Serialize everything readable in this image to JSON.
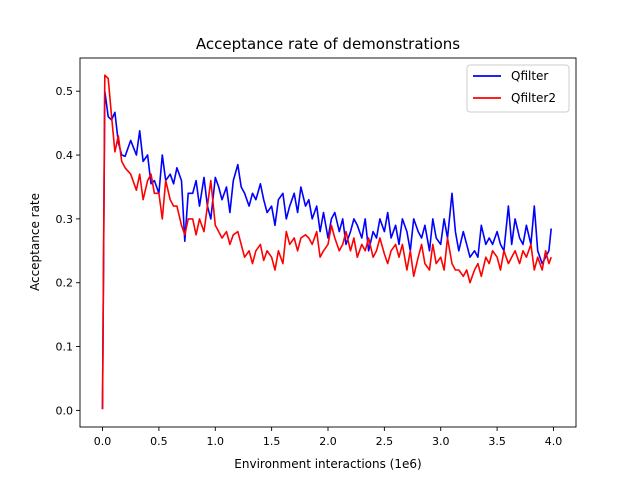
{
  "chart_data": {
    "type": "line",
    "title": "Acceptance rate of demonstrations",
    "xlabel": "Environment interactions (1e6)",
    "ylabel": "Acceptance rate",
    "xlim": [
      -0.2,
      4.2
    ],
    "ylim": [
      -0.026,
      0.552
    ],
    "xticks": [
      "0.0",
      "0.5",
      "1.0",
      "1.5",
      "2.0",
      "2.5",
      "3.0",
      "3.5",
      "4.0"
    ],
    "yticks": [
      "0.0",
      "0.1",
      "0.2",
      "0.3",
      "0.4",
      "0.5"
    ],
    "grid": false,
    "legend_position": "top-right",
    "series": [
      {
        "name": "Qfilter",
        "color": "#0000ff",
        "x": [
          0.0,
          0.02,
          0.05,
          0.08,
          0.11,
          0.14,
          0.17,
          0.2,
          0.25,
          0.3,
          0.33,
          0.36,
          0.4,
          0.43,
          0.46,
          0.5,
          0.53,
          0.56,
          0.6,
          0.63,
          0.66,
          0.7,
          0.73,
          0.76,
          0.8,
          0.83,
          0.86,
          0.9,
          0.93,
          0.96,
          1.0,
          1.03,
          1.06,
          1.1,
          1.13,
          1.16,
          1.2,
          1.23,
          1.26,
          1.3,
          1.33,
          1.36,
          1.4,
          1.43,
          1.46,
          1.5,
          1.53,
          1.56,
          1.6,
          1.63,
          1.66,
          1.7,
          1.73,
          1.76,
          1.8,
          1.83,
          1.86,
          1.9,
          1.93,
          1.96,
          2.0,
          2.03,
          2.06,
          2.1,
          2.13,
          2.16,
          2.2,
          2.23,
          2.26,
          2.3,
          2.33,
          2.36,
          2.4,
          2.43,
          2.46,
          2.5,
          2.53,
          2.56,
          2.6,
          2.63,
          2.66,
          2.7,
          2.73,
          2.76,
          2.8,
          2.83,
          2.86,
          2.9,
          2.93,
          2.96,
          3.0,
          3.03,
          3.06,
          3.1,
          3.13,
          3.16,
          3.2,
          3.23,
          3.26,
          3.3,
          3.33,
          3.36,
          3.4,
          3.43,
          3.46,
          3.5,
          3.53,
          3.56,
          3.6,
          3.63,
          3.66,
          3.7,
          3.73,
          3.76,
          3.8,
          3.83,
          3.86,
          3.9,
          3.93,
          3.96,
          3.98
        ],
        "y": [
          0.002,
          0.5,
          0.46,
          0.455,
          0.467,
          0.42,
          0.4,
          0.398,
          0.423,
          0.4,
          0.438,
          0.39,
          0.4,
          0.355,
          0.36,
          0.34,
          0.4,
          0.36,
          0.37,
          0.355,
          0.38,
          0.36,
          0.265,
          0.34,
          0.34,
          0.36,
          0.32,
          0.365,
          0.32,
          0.3,
          0.365,
          0.35,
          0.33,
          0.35,
          0.31,
          0.36,
          0.385,
          0.35,
          0.34,
          0.32,
          0.34,
          0.33,
          0.355,
          0.33,
          0.31,
          0.32,
          0.29,
          0.33,
          0.34,
          0.3,
          0.32,
          0.34,
          0.31,
          0.35,
          0.32,
          0.33,
          0.3,
          0.32,
          0.28,
          0.31,
          0.27,
          0.3,
          0.31,
          0.28,
          0.3,
          0.26,
          0.28,
          0.3,
          0.29,
          0.27,
          0.3,
          0.25,
          0.28,
          0.27,
          0.3,
          0.28,
          0.31,
          0.27,
          0.29,
          0.26,
          0.3,
          0.28,
          0.25,
          0.3,
          0.28,
          0.27,
          0.29,
          0.25,
          0.3,
          0.27,
          0.26,
          0.3,
          0.27,
          0.34,
          0.28,
          0.25,
          0.28,
          0.26,
          0.24,
          0.25,
          0.24,
          0.29,
          0.26,
          0.27,
          0.26,
          0.28,
          0.26,
          0.25,
          0.32,
          0.26,
          0.3,
          0.27,
          0.26,
          0.29,
          0.26,
          0.32,
          0.25,
          0.23,
          0.24,
          0.25,
          0.285
        ]
      },
      {
        "name": "Qfilter2",
        "color": "#ff0000",
        "x": [
          0.0,
          0.02,
          0.05,
          0.08,
          0.11,
          0.14,
          0.17,
          0.2,
          0.25,
          0.3,
          0.33,
          0.36,
          0.4,
          0.43,
          0.46,
          0.5,
          0.53,
          0.56,
          0.6,
          0.63,
          0.66,
          0.7,
          0.73,
          0.76,
          0.8,
          0.83,
          0.86,
          0.9,
          0.93,
          0.96,
          1.0,
          1.03,
          1.06,
          1.1,
          1.13,
          1.16,
          1.2,
          1.23,
          1.26,
          1.3,
          1.33,
          1.36,
          1.4,
          1.43,
          1.46,
          1.5,
          1.53,
          1.56,
          1.6,
          1.63,
          1.66,
          1.7,
          1.73,
          1.76,
          1.8,
          1.83,
          1.86,
          1.9,
          1.93,
          1.96,
          2.0,
          2.03,
          2.06,
          2.1,
          2.13,
          2.16,
          2.2,
          2.23,
          2.26,
          2.3,
          2.33,
          2.36,
          2.4,
          2.43,
          2.46,
          2.5,
          2.53,
          2.56,
          2.6,
          2.63,
          2.66,
          2.7,
          2.73,
          2.76,
          2.8,
          2.83,
          2.86,
          2.9,
          2.93,
          2.96,
          3.0,
          3.03,
          3.06,
          3.1,
          3.13,
          3.16,
          3.2,
          3.23,
          3.26,
          3.3,
          3.33,
          3.36,
          3.4,
          3.43,
          3.46,
          3.5,
          3.53,
          3.56,
          3.6,
          3.63,
          3.66,
          3.7,
          3.73,
          3.76,
          3.8,
          3.83,
          3.86,
          3.9,
          3.93,
          3.96,
          3.98
        ],
        "y": [
          0.002,
          0.525,
          0.52,
          0.46,
          0.405,
          0.43,
          0.39,
          0.38,
          0.37,
          0.345,
          0.37,
          0.33,
          0.36,
          0.37,
          0.34,
          0.34,
          0.3,
          0.36,
          0.33,
          0.32,
          0.32,
          0.29,
          0.275,
          0.3,
          0.3,
          0.275,
          0.3,
          0.28,
          0.32,
          0.36,
          0.29,
          0.28,
          0.27,
          0.28,
          0.26,
          0.275,
          0.28,
          0.26,
          0.24,
          0.25,
          0.23,
          0.25,
          0.26,
          0.235,
          0.25,
          0.24,
          0.22,
          0.25,
          0.23,
          0.28,
          0.26,
          0.27,
          0.25,
          0.27,
          0.275,
          0.27,
          0.26,
          0.28,
          0.24,
          0.25,
          0.26,
          0.29,
          0.27,
          0.25,
          0.26,
          0.28,
          0.25,
          0.27,
          0.24,
          0.26,
          0.25,
          0.27,
          0.24,
          0.25,
          0.27,
          0.245,
          0.23,
          0.25,
          0.26,
          0.24,
          0.26,
          0.22,
          0.25,
          0.21,
          0.24,
          0.26,
          0.23,
          0.22,
          0.26,
          0.23,
          0.24,
          0.22,
          0.27,
          0.23,
          0.22,
          0.22,
          0.21,
          0.22,
          0.2,
          0.22,
          0.23,
          0.21,
          0.24,
          0.23,
          0.25,
          0.24,
          0.22,
          0.25,
          0.23,
          0.24,
          0.25,
          0.23,
          0.25,
          0.24,
          0.26,
          0.22,
          0.24,
          0.22,
          0.25,
          0.23,
          0.24
        ]
      }
    ]
  }
}
